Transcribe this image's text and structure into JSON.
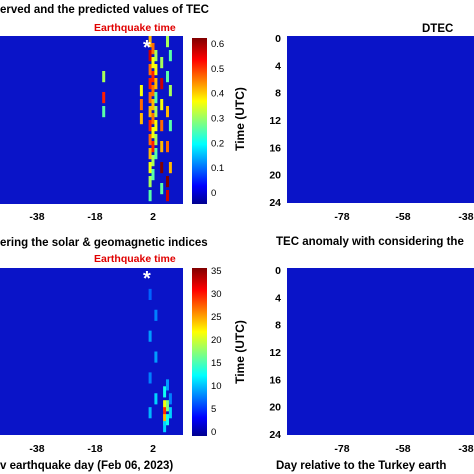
{
  "chart_data": [
    {
      "type": "heatmap",
      "title": "erved and the predicted values of TEC",
      "annotation": "Earthquake time",
      "marker": "*",
      "x_ticks": [
        "-38",
        "-18",
        "2"
      ],
      "colorbar_ticks": [
        "0",
        "0.1",
        "0.2",
        "0.3",
        "0.4",
        "0.5",
        "0.6"
      ],
      "colorbar_range": [
        0,
        0.65
      ],
      "colormap": "jet",
      "hot_columns": [
        {
          "x": -2,
          "rows": [
            [
              7,
              0.4
            ],
            [
              9,
              0.5
            ],
            [
              11,
              0.45
            ]
          ]
        },
        {
          "x": -15,
          "rows": [
            [
              5,
              0.35
            ],
            [
              8,
              0.55
            ],
            [
              10,
              0.3
            ]
          ]
        },
        {
          "x": 1,
          "rows": [
            [
              0,
              0.45
            ],
            [
              2,
              0.6
            ],
            [
              4,
              0.5
            ],
            [
              6,
              0.55
            ],
            [
              8,
              0.5
            ],
            [
              10,
              0.45
            ],
            [
              12,
              0.55
            ],
            [
              14,
              0.5
            ],
            [
              16,
              0.45
            ],
            [
              18,
              0.4
            ],
            [
              20,
              0.35
            ],
            [
              22,
              0.3
            ]
          ]
        },
        {
          "x": 2,
          "rows": [
            [
              1,
              0.5
            ],
            [
              3,
              0.4
            ],
            [
              5,
              0.55
            ],
            [
              7,
              0.5
            ],
            [
              9,
              0.45
            ],
            [
              11,
              0.5
            ],
            [
              13,
              0.4
            ],
            [
              15,
              0.55
            ],
            [
              17,
              0.35
            ],
            [
              19,
              0.3
            ]
          ]
        },
        {
          "x": 3,
          "rows": [
            [
              2,
              0.35
            ],
            [
              4,
              0.4
            ],
            [
              6,
              0.45
            ],
            [
              8,
              0.3
            ],
            [
              10,
              0.35
            ],
            [
              12,
              0.4
            ],
            [
              14,
              0.35
            ],
            [
              16,
              0.3
            ]
          ]
        },
        {
          "x": 5,
          "rows": [
            [
              3,
              0.35
            ],
            [
              6,
              0.6
            ],
            [
              9,
              0.4
            ],
            [
              12,
              0.5
            ],
            [
              15,
              0.45
            ],
            [
              18,
              0.65
            ],
            [
              21,
              0.3
            ]
          ]
        },
        {
          "x": 7,
          "rows": [
            [
              0,
              0.35
            ],
            [
              5,
              0.3
            ],
            [
              10,
              0.45
            ],
            [
              15,
              0.5
            ],
            [
              20,
              0.65
            ],
            [
              22,
              0.6
            ]
          ]
        },
        {
          "x": 8,
          "rows": [
            [
              2,
              0.3
            ],
            [
              7,
              0.35
            ],
            [
              12,
              0.3
            ],
            [
              18,
              0.45
            ]
          ]
        }
      ]
    },
    {
      "type": "heatmap",
      "title": "DTEC",
      "y_label": "Time (UTC)",
      "y_ticks": [
        "0",
        "4",
        "8",
        "12",
        "16",
        "20",
        "24"
      ],
      "x_ticks": [
        "-78",
        "-58",
        "-38"
      ]
    },
    {
      "type": "heatmap",
      "title": "ering the solar & geomagnetic indices",
      "annotation": "Earthquake time",
      "marker": "*",
      "x_ticks": [
        "-38",
        "-18",
        "2"
      ],
      "x_label": "v earthquake day (Feb 06, 2023)",
      "colorbar_ticks": [
        "0",
        "5",
        "10",
        "15",
        "20",
        "25",
        "30",
        "35"
      ],
      "colorbar_range": [
        0,
        36
      ],
      "colormap": "jet",
      "hot_columns": [
        {
          "x": 1,
          "rows": [
            [
              3,
              8
            ],
            [
              9,
              10
            ],
            [
              15,
              9
            ],
            [
              20,
              11
            ]
          ]
        },
        {
          "x": 3,
          "rows": [
            [
              6,
              9
            ],
            [
              12,
              10
            ],
            [
              18,
              12
            ]
          ]
        },
        {
          "x": 6,
          "rows": [
            [
              17,
              14
            ],
            [
              19,
              22
            ],
            [
              20,
              30
            ],
            [
              21,
              25
            ],
            [
              22,
              12
            ]
          ]
        },
        {
          "x": 7,
          "rows": [
            [
              16,
              10
            ],
            [
              19,
              18
            ],
            [
              21,
              14
            ]
          ]
        },
        {
          "x": 8,
          "rows": [
            [
              18,
              9
            ],
            [
              20,
              12
            ]
          ]
        }
      ]
    },
    {
      "type": "heatmap",
      "title": "TEC anomaly with considering the",
      "y_label": "Time (UTC)",
      "y_ticks": [
        "0",
        "4",
        "8",
        "12",
        "16",
        "20",
        "24"
      ],
      "x_ticks": [
        "-78",
        "-58",
        "-38"
      ],
      "x_label": "Day relative to the Turkey earth"
    }
  ]
}
